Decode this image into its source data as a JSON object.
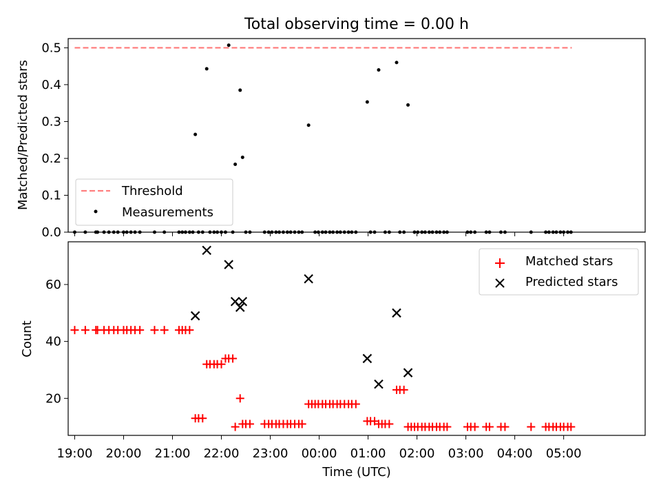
{
  "chart_data": [
    {
      "type": "scatter",
      "title": "Total observing time = 0.00 h",
      "xlabel": "",
      "ylabel": "Matched/Predicted stars",
      "ylim": [
        0,
        0.525
      ],
      "xlim": [
        "18:52",
        "06:40"
      ],
      "x_axis": "time (UTC, 19:00 on day 1 to 05:00 on day 2)",
      "yticks": [
        "0.0",
        "0.1",
        "0.2",
        "0.3",
        "0.4",
        "0.5"
      ],
      "legend_position": "lower-left",
      "series": [
        {
          "name": "Threshold",
          "style": "dashed-line",
          "color": "#ff7f7f",
          "points": [
            [
              "19:00",
              0.5
            ],
            [
              "05:10",
              0.5
            ]
          ]
        },
        {
          "name": "Measurements",
          "style": "dot",
          "color": "#000000",
          "points": [
            [
              "19:00",
              0
            ],
            [
              "19:13",
              0
            ],
            [
              "19:26",
              0
            ],
            [
              "19:28",
              0
            ],
            [
              "19:36",
              0
            ],
            [
              "19:42",
              0
            ],
            [
              "19:48",
              0
            ],
            [
              "19:53",
              0
            ],
            [
              "20:00",
              0
            ],
            [
              "20:04",
              0
            ],
            [
              "20:09",
              0
            ],
            [
              "20:14",
              0
            ],
            [
              "20:20",
              0
            ],
            [
              "20:38",
              0
            ],
            [
              "20:50",
              0
            ],
            [
              "21:08",
              0
            ],
            [
              "21:12",
              0
            ],
            [
              "21:16",
              0
            ],
            [
              "21:21",
              0
            ],
            [
              "21:25",
              0
            ],
            [
              "21:28",
              0.265
            ],
            [
              "21:32",
              0
            ],
            [
              "21:37",
              0
            ],
            [
              "21:42",
              0.443
            ],
            [
              "21:46",
              0
            ],
            [
              "21:51",
              0
            ],
            [
              "21:55",
              0
            ],
            [
              "22:00",
              0
            ],
            [
              "22:05",
              0
            ],
            [
              "22:09",
              0.507
            ],
            [
              "22:14",
              0
            ],
            [
              "22:17",
              0.184
            ],
            [
              "22:23",
              0.385
            ],
            [
              "22:26",
              0.203
            ],
            [
              "22:30",
              0
            ],
            [
              "22:35",
              0
            ],
            [
              "22:53",
              0
            ],
            [
              "22:58",
              0
            ],
            [
              "23:02",
              0
            ],
            [
              "23:07",
              0
            ],
            [
              "23:11",
              0
            ],
            [
              "23:16",
              0
            ],
            [
              "23:21",
              0
            ],
            [
              "23:25",
              0
            ],
            [
              "23:30",
              0
            ],
            [
              "23:35",
              0
            ],
            [
              "23:39",
              0
            ],
            [
              "23:47",
              0.29
            ],
            [
              "23:55",
              0
            ],
            [
              "23:59",
              0
            ],
            [
              "00:04",
              0
            ],
            [
              "00:08",
              0
            ],
            [
              "00:13",
              0
            ],
            [
              "00:17",
              0
            ],
            [
              "00:22",
              0
            ],
            [
              "00:26",
              0
            ],
            [
              "00:31",
              0
            ],
            [
              "00:36",
              0
            ],
            [
              "00:40",
              0
            ],
            [
              "00:45",
              0
            ],
            [
              "00:59",
              0.353
            ],
            [
              "01:03",
              0
            ],
            [
              "01:08",
              0
            ],
            [
              "01:13",
              0.44
            ],
            [
              "01:21",
              0
            ],
            [
              "01:26",
              0
            ],
            [
              "01:35",
              0.46
            ],
            [
              "01:39",
              0
            ],
            [
              "01:44",
              0
            ],
            [
              "01:49",
              0.345
            ],
            [
              "01:57",
              0
            ],
            [
              "02:01",
              0
            ],
            [
              "02:06",
              0
            ],
            [
              "02:10",
              0
            ],
            [
              "02:15",
              0
            ],
            [
              "02:19",
              0
            ],
            [
              "02:24",
              0
            ],
            [
              "02:28",
              0
            ],
            [
              "02:33",
              0
            ],
            [
              "02:37",
              0
            ],
            [
              "03:02",
              0
            ],
            [
              "03:06",
              0
            ],
            [
              "03:11",
              0
            ],
            [
              "03:25",
              0
            ],
            [
              "03:29",
              0
            ],
            [
              "03:43",
              0
            ],
            [
              "03:48",
              0
            ],
            [
              "04:20",
              0
            ],
            [
              "04:38",
              0
            ],
            [
              "04:42",
              0
            ],
            [
              "04:47",
              0
            ],
            [
              "04:51",
              0
            ],
            [
              "04:56",
              0
            ],
            [
              "05:00",
              0
            ],
            [
              "05:05",
              0
            ],
            [
              "05:09",
              0
            ]
          ]
        }
      ]
    },
    {
      "type": "scatter",
      "title": "",
      "xlabel": "Time (UTC)",
      "ylabel": "Count",
      "ylim": [
        7,
        75
      ],
      "xlim": [
        "18:52",
        "06:40"
      ],
      "x_axis": "time (UTC, 19:00 on day 1 to 05:00 on day 2)",
      "xticks": [
        "19:00",
        "20:00",
        "21:00",
        "22:00",
        "23:00",
        "00:00",
        "01:00",
        "02:00",
        "03:00",
        "04:00",
        "05:00"
      ],
      "yticks": [
        "20",
        "40",
        "60"
      ],
      "legend_position": "top-right",
      "series": [
        {
          "name": "Matched stars",
          "marker": "+",
          "color": "#ff0000",
          "points": [
            [
              "19:00",
              44
            ],
            [
              "19:13",
              44
            ],
            [
              "19:26",
              44
            ],
            [
              "19:28",
              44
            ],
            [
              "19:36",
              44
            ],
            [
              "19:42",
              44
            ],
            [
              "19:48",
              44
            ],
            [
              "19:53",
              44
            ],
            [
              "20:00",
              44
            ],
            [
              "20:04",
              44
            ],
            [
              "20:09",
              44
            ],
            [
              "20:14",
              44
            ],
            [
              "20:20",
              44
            ],
            [
              "20:38",
              44
            ],
            [
              "20:50",
              44
            ],
            [
              "21:08",
              44
            ],
            [
              "21:12",
              44
            ],
            [
              "21:16",
              44
            ],
            [
              "21:21",
              44
            ],
            [
              "21:28",
              13
            ],
            [
              "21:32",
              13
            ],
            [
              "21:37",
              13
            ],
            [
              "21:42",
              32
            ],
            [
              "21:46",
              32
            ],
            [
              "21:51",
              32
            ],
            [
              "21:55",
              32
            ],
            [
              "22:00",
              32
            ],
            [
              "22:05",
              34
            ],
            [
              "22:09",
              34
            ],
            [
              "22:14",
              34
            ],
            [
              "22:17",
              10
            ],
            [
              "22:23",
              20
            ],
            [
              "22:26",
              11
            ],
            [
              "22:30",
              11
            ],
            [
              "22:35",
              11
            ],
            [
              "22:53",
              11
            ],
            [
              "22:58",
              11
            ],
            [
              "23:02",
              11
            ],
            [
              "23:07",
              11
            ],
            [
              "23:11",
              11
            ],
            [
              "23:16",
              11
            ],
            [
              "23:21",
              11
            ],
            [
              "23:25",
              11
            ],
            [
              "23:30",
              11
            ],
            [
              "23:35",
              11
            ],
            [
              "23:39",
              11
            ],
            [
              "23:47",
              18
            ],
            [
              "23:51",
              18
            ],
            [
              "23:55",
              18
            ],
            [
              "23:59",
              18
            ],
            [
              "00:04",
              18
            ],
            [
              "00:08",
              18
            ],
            [
              "00:13",
              18
            ],
            [
              "00:17",
              18
            ],
            [
              "00:22",
              18
            ],
            [
              "00:26",
              18
            ],
            [
              "00:31",
              18
            ],
            [
              "00:36",
              18
            ],
            [
              "00:40",
              18
            ],
            [
              "00:45",
              18
            ],
            [
              "00:59",
              12
            ],
            [
              "01:03",
              12
            ],
            [
              "01:08",
              12
            ],
            [
              "01:13",
              11
            ],
            [
              "01:17",
              11
            ],
            [
              "01:21",
              11
            ],
            [
              "01:26",
              11
            ],
            [
              "01:35",
              23
            ],
            [
              "01:39",
              23
            ],
            [
              "01:44",
              23
            ],
            [
              "01:49",
              10
            ],
            [
              "01:53",
              10
            ],
            [
              "01:57",
              10
            ],
            [
              "02:01",
              10
            ],
            [
              "02:06",
              10
            ],
            [
              "02:10",
              10
            ],
            [
              "02:15",
              10
            ],
            [
              "02:19",
              10
            ],
            [
              "02:24",
              10
            ],
            [
              "02:28",
              10
            ],
            [
              "02:33",
              10
            ],
            [
              "02:37",
              10
            ],
            [
              "03:02",
              10
            ],
            [
              "03:06",
              10
            ],
            [
              "03:11",
              10
            ],
            [
              "03:25",
              10
            ],
            [
              "03:29",
              10
            ],
            [
              "03:43",
              10
            ],
            [
              "03:48",
              10
            ],
            [
              "04:20",
              10
            ],
            [
              "04:38",
              10
            ],
            [
              "04:42",
              10
            ],
            [
              "04:47",
              10
            ],
            [
              "04:51",
              10
            ],
            [
              "04:56",
              10
            ],
            [
              "05:00",
              10
            ],
            [
              "05:05",
              10
            ],
            [
              "05:09",
              10
            ]
          ]
        },
        {
          "name": "Predicted stars",
          "marker": "x",
          "color": "#000000",
          "points": [
            [
              "21:28",
              49
            ],
            [
              "21:42",
              72
            ],
            [
              "22:09",
              67
            ],
            [
              "22:17",
              54
            ],
            [
              "22:23",
              52
            ],
            [
              "22:26",
              54
            ],
            [
              "23:47",
              62
            ],
            [
              "00:59",
              34
            ],
            [
              "01:13",
              25
            ],
            [
              "01:35",
              50
            ],
            [
              "01:49",
              29
            ]
          ]
        }
      ]
    }
  ]
}
